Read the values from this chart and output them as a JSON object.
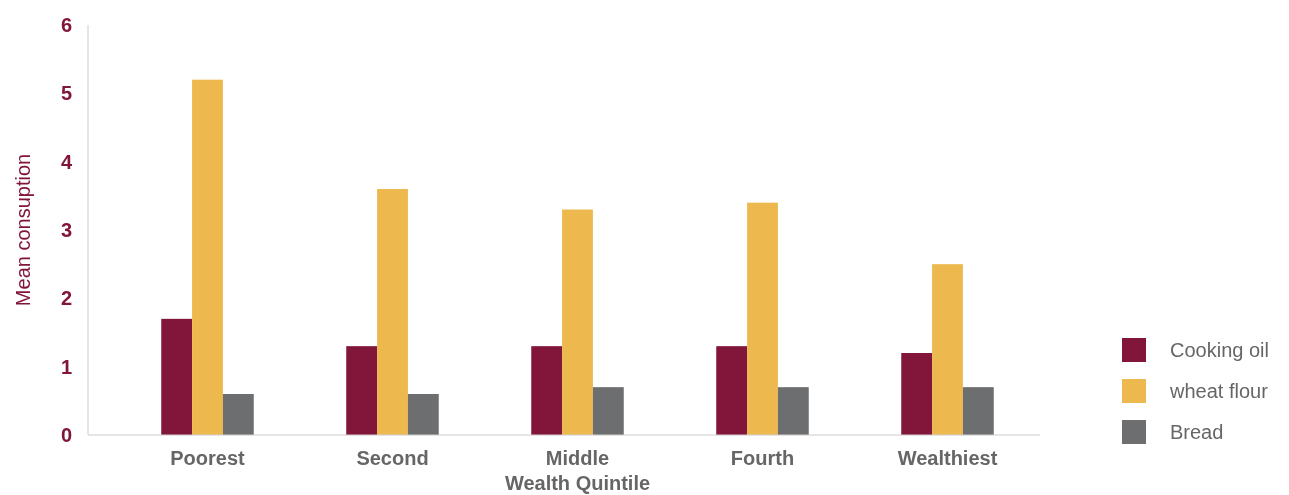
{
  "chart_data": {
    "type": "bar",
    "xlabel": "Wealth Quintile",
    "ylabel": "Mean consuption",
    "categories": [
      "Poorest",
      "Second",
      "Middle",
      "Fourth",
      "Wealthiest"
    ],
    "series": [
      {
        "name": "Cooking oil",
        "color": "#82153a",
        "values": [
          1.7,
          1.3,
          1.3,
          1.3,
          1.2
        ]
      },
      {
        "name": "wheat flour",
        "color": "#edb94e",
        "values": [
          5.2,
          3.6,
          3.3,
          3.4,
          2.5
        ]
      },
      {
        "name": "Bread",
        "color": "#6d6e70",
        "values": [
          0.6,
          0.6,
          0.7,
          0.7,
          0.7
        ]
      }
    ],
    "ylim": [
      0,
      6
    ],
    "yticks": [
      0,
      1,
      2,
      3,
      4,
      5,
      6
    ],
    "grid": false,
    "legend": "right"
  }
}
